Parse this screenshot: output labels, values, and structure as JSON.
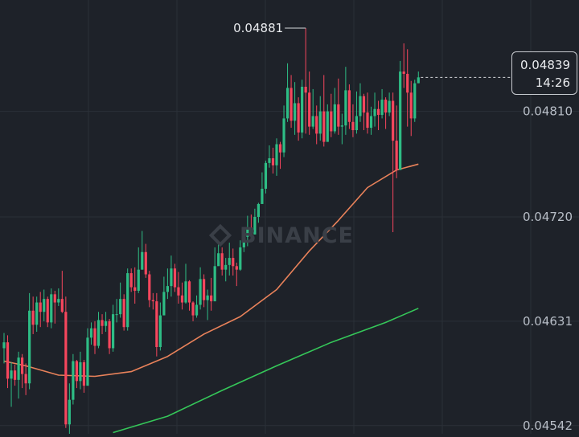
{
  "chart_data": {
    "type": "candlestick",
    "colors": {
      "up": "#2ebd85",
      "down": "#f6465d",
      "ma_short": "#e9825a",
      "ma_long": "#35c759",
      "grid": "#2b3038",
      "axis_text": "#b7bdc6"
    },
    "y_axis_ticks": [
      "0.04810",
      "0.04720",
      "0.04631",
      "0.04542"
    ],
    "ylim": [
      0.04535,
      0.04905
    ],
    "current_price": {
      "price": "0.04839",
      "countdown": "14:26"
    },
    "high_marker": {
      "label": "0.04881"
    },
    "candles": [
      [
        0.04608,
        0.04613,
        0.04621,
        0.04595
      ],
      [
        0.04613,
        0.04582,
        0.04619,
        0.04574
      ],
      [
        0.04582,
        0.04589,
        0.04596,
        0.04558
      ],
      [
        0.04589,
        0.04581,
        0.04594,
        0.04576
      ],
      [
        0.04581,
        0.046,
        0.04605,
        0.04565
      ],
      [
        0.046,
        0.04586,
        0.04603,
        0.04574
      ],
      [
        0.04586,
        0.04578,
        0.04595,
        0.04568
      ],
      [
        0.04578,
        0.0464,
        0.04655,
        0.04573
      ],
      [
        0.0464,
        0.04628,
        0.04652,
        0.0462
      ],
      [
        0.04628,
        0.04647,
        0.04652,
        0.04622
      ],
      [
        0.04647,
        0.04639,
        0.04656,
        0.04626
      ],
      [
        0.04639,
        0.0465,
        0.04658,
        0.04631
      ],
      [
        0.0465,
        0.0463,
        0.04652,
        0.04626
      ],
      [
        0.0463,
        0.04654,
        0.04659,
        0.04625
      ],
      [
        0.04654,
        0.04647,
        0.04657,
        0.04629
      ],
      [
        0.04647,
        0.0465,
        0.04659,
        0.04644
      ],
      [
        0.0465,
        0.04639,
        0.04674,
        0.04638
      ],
      [
        0.04639,
        0.04543,
        0.04652,
        0.0454
      ],
      [
        0.04543,
        0.04564,
        0.04578,
        0.04529
      ],
      [
        0.04564,
        0.04597,
        0.04603,
        0.0456
      ],
      [
        0.04597,
        0.0458,
        0.04598,
        0.04574
      ],
      [
        0.0458,
        0.04596,
        0.04605,
        0.04573
      ],
      [
        0.04596,
        0.04576,
        0.04598,
        0.0457
      ],
      [
        0.04576,
        0.04617,
        0.04625,
        0.04576
      ],
      [
        0.04617,
        0.04625,
        0.0463,
        0.04611
      ],
      [
        0.04625,
        0.0461,
        0.04631,
        0.04603
      ],
      [
        0.0461,
        0.04632,
        0.04639,
        0.04608
      ],
      [
        0.04632,
        0.04627,
        0.04637,
        0.0462
      ],
      [
        0.04627,
        0.04631,
        0.04639,
        0.04622
      ],
      [
        0.04631,
        0.04608,
        0.04633,
        0.04603
      ],
      [
        0.04608,
        0.04637,
        0.04645,
        0.04605
      ],
      [
        0.04637,
        0.04637,
        0.0465,
        0.0463
      ],
      [
        0.04637,
        0.0465,
        0.04664,
        0.04634
      ],
      [
        0.0465,
        0.04626,
        0.04654,
        0.04623
      ],
      [
        0.04626,
        0.04672,
        0.04676,
        0.04623
      ],
      [
        0.04672,
        0.0466,
        0.04676,
        0.04656
      ],
      [
        0.0466,
        0.04657,
        0.04677,
        0.04646
      ],
      [
        0.04657,
        0.04675,
        0.04694,
        0.04655
      ],
      [
        0.04675,
        0.0469,
        0.04708,
        0.04675
      ],
      [
        0.0469,
        0.04671,
        0.04697,
        0.04668
      ],
      [
        0.04671,
        0.04649,
        0.04674,
        0.04643
      ],
      [
        0.04649,
        0.04648,
        0.04655,
        0.04641
      ],
      [
        0.04648,
        0.04609,
        0.04655,
        0.04601
      ],
      [
        0.04609,
        0.04636,
        0.04647,
        0.04606
      ],
      [
        0.04636,
        0.04656,
        0.04669,
        0.04637
      ],
      [
        0.04656,
        0.04661,
        0.04676,
        0.0465
      ],
      [
        0.04661,
        0.04676,
        0.04687,
        0.04652
      ],
      [
        0.04676,
        0.0466,
        0.0468,
        0.04656
      ],
      [
        0.0466,
        0.04653,
        0.04673,
        0.04646
      ],
      [
        0.04653,
        0.04647,
        0.04664,
        0.04641
      ],
      [
        0.04647,
        0.04665,
        0.0468,
        0.04646
      ],
      [
        0.04665,
        0.04647,
        0.04666,
        0.0464
      ],
      [
        0.04647,
        0.04636,
        0.04648,
        0.04631
      ],
      [
        0.04636,
        0.04645,
        0.04653,
        0.04634
      ],
      [
        0.04645,
        0.04667,
        0.04677,
        0.04641
      ],
      [
        0.04667,
        0.04649,
        0.04671,
        0.04643
      ],
      [
        0.04649,
        0.04653,
        0.04658,
        0.04632
      ],
      [
        0.04653,
        0.04648,
        0.04668,
        0.0464
      ],
      [
        0.04648,
        0.04678,
        0.04694,
        0.04648
      ],
      [
        0.04678,
        0.04689,
        0.04699,
        0.0468
      ],
      [
        0.04689,
        0.04675,
        0.04694,
        0.0467
      ],
      [
        0.04675,
        0.04679,
        0.04685,
        0.04665
      ],
      [
        0.04679,
        0.04685,
        0.04698,
        0.0467
      ],
      [
        0.04685,
        0.04678,
        0.04693,
        0.0467
      ],
      [
        0.04678,
        0.04675,
        0.04681,
        0.04661
      ],
      [
        0.04675,
        0.04694,
        0.047,
        0.04674
      ],
      [
        0.04694,
        0.04703,
        0.0471,
        0.0469
      ],
      [
        0.04703,
        0.04711,
        0.04721,
        0.04695
      ],
      [
        0.04711,
        0.04705,
        0.04722,
        0.047
      ],
      [
        0.04705,
        0.0472,
        0.04727,
        0.04705
      ],
      [
        0.0472,
        0.04731,
        0.04732,
        0.04715
      ],
      [
        0.04731,
        0.04744,
        0.04758,
        0.04732
      ],
      [
        0.04744,
        0.04766,
        0.04768,
        0.0474
      ],
      [
        0.04766,
        0.0477,
        0.04781,
        0.04762
      ],
      [
        0.0477,
        0.04764,
        0.04779,
        0.04757
      ],
      [
        0.04764,
        0.04782,
        0.04787,
        0.04755
      ],
      [
        0.04782,
        0.04775,
        0.04784,
        0.04761
      ],
      [
        0.04775,
        0.04804,
        0.04815,
        0.04771
      ],
      [
        0.04804,
        0.0483,
        0.04851,
        0.04801
      ],
      [
        0.0483,
        0.04802,
        0.04841,
        0.04796
      ],
      [
        0.04802,
        0.04817,
        0.04835,
        0.0479
      ],
      [
        0.04817,
        0.04792,
        0.04822,
        0.04785
      ],
      [
        0.04792,
        0.04831,
        0.04837,
        0.04787
      ],
      [
        0.04831,
        0.04826,
        0.04881,
        0.04791
      ],
      [
        0.04826,
        0.04797,
        0.04844,
        0.0479
      ],
      [
        0.04797,
        0.04806,
        0.04829,
        0.04795
      ],
      [
        0.04806,
        0.04791,
        0.04815,
        0.04782
      ],
      [
        0.04791,
        0.0481,
        0.04823,
        0.04785
      ],
      [
        0.0481,
        0.04784,
        0.04841,
        0.0478
      ],
      [
        0.04784,
        0.0481,
        0.04816,
        0.04784
      ],
      [
        0.0481,
        0.04793,
        0.04825,
        0.04788
      ],
      [
        0.04793,
        0.04816,
        0.0483,
        0.04791
      ],
      [
        0.04816,
        0.04797,
        0.04838,
        0.0479
      ],
      [
        0.04797,
        0.04798,
        0.04808,
        0.04782
      ],
      [
        0.04798,
        0.04828,
        0.04848,
        0.0479
      ],
      [
        0.04828,
        0.04801,
        0.04833,
        0.04795
      ],
      [
        0.04801,
        0.04794,
        0.04816,
        0.04788
      ],
      [
        0.04794,
        0.04806,
        0.04827,
        0.04791
      ],
      [
        0.04806,
        0.04823,
        0.04834,
        0.04801
      ],
      [
        0.04823,
        0.04809,
        0.04825,
        0.04794
      ],
      [
        0.04809,
        0.04796,
        0.04826,
        0.04791
      ],
      [
        0.04796,
        0.04806,
        0.04814,
        0.0479
      ],
      [
        0.04806,
        0.04812,
        0.04826,
        0.04797
      ],
      [
        0.04812,
        0.04807,
        0.04819,
        0.04794
      ],
      [
        0.04807,
        0.0482,
        0.04829,
        0.04804
      ],
      [
        0.0482,
        0.04809,
        0.04822,
        0.04795
      ],
      [
        0.04809,
        0.04819,
        0.04826,
        0.04806
      ],
      [
        0.04819,
        0.04785,
        0.04826,
        0.04707
      ],
      [
        0.04785,
        0.0476,
        0.04815,
        0.04753
      ],
      [
        0.0476,
        0.04844,
        0.04853,
        0.0477
      ],
      [
        0.04844,
        0.04842,
        0.04868,
        0.0483
      ],
      [
        0.04842,
        0.04826,
        0.04863,
        0.04797
      ],
      [
        0.04826,
        0.04804,
        0.04836,
        0.04789
      ],
      [
        0.04804,
        0.04834,
        0.04837,
        0.04801
      ],
      [
        0.04834,
        0.04839,
        0.04844,
        0.04834
      ]
    ],
    "ma_short": [
      [
        0,
        0.04597
      ],
      [
        6,
        0.04593
      ],
      [
        15,
        0.04585
      ],
      [
        25,
        0.04584
      ],
      [
        35,
        0.04588
      ],
      [
        45,
        0.04601
      ],
      [
        55,
        0.0462
      ],
      [
        65,
        0.04635
      ],
      [
        75,
        0.04658
      ],
      [
        84,
        0.04691
      ],
      [
        92,
        0.04717
      ],
      [
        100,
        0.04745
      ],
      [
        108,
        0.0476
      ],
      [
        114,
        0.04765
      ]
    ],
    "ma_long": [
      [
        30,
        0.04536
      ],
      [
        45,
        0.0455
      ],
      [
        60,
        0.04572
      ],
      [
        75,
        0.04593
      ],
      [
        90,
        0.04613
      ],
      [
        105,
        0.0463
      ],
      [
        114,
        0.04642
      ]
    ]
  }
}
